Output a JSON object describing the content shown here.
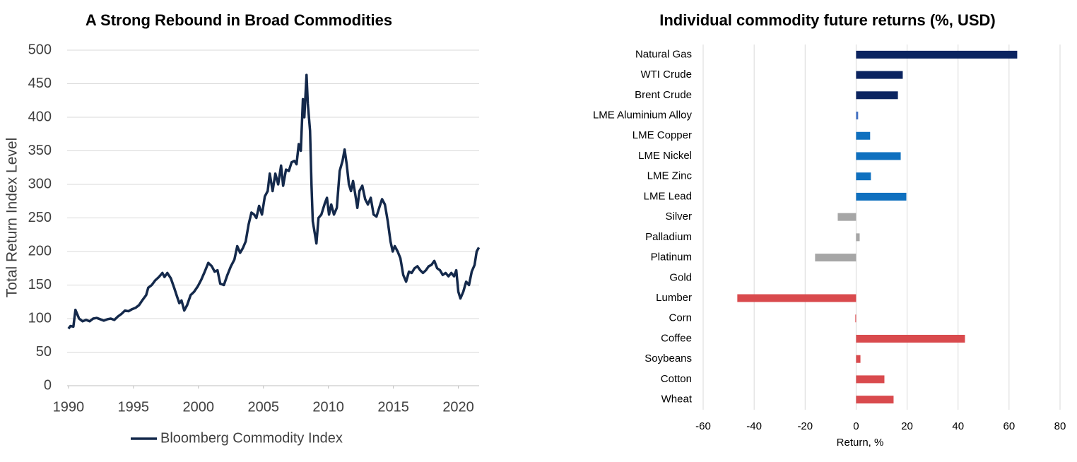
{
  "chart_data": [
    {
      "type": "line",
      "title": "A Strong Rebound in Broad Commodities",
      "ylabel": "Total Return Index Level",
      "x": [
        1990.0,
        1990.16,
        1990.38,
        1990.54,
        1990.82,
        1991.09,
        1991.36,
        1991.63,
        1991.9,
        1992.17,
        1992.45,
        1992.72,
        1992.99,
        1993.26,
        1993.53,
        1993.8,
        1994.08,
        1994.35,
        1994.62,
        1994.89,
        1995.16,
        1995.43,
        1995.71,
        1995.98,
        1996.14,
        1996.41,
        1996.68,
        1996.96,
        1997.23,
        1997.39,
        1997.61,
        1997.88,
        1998.15,
        1998.37,
        1998.53,
        1998.7,
        1998.91,
        1999.13,
        1999.4,
        1999.67,
        1999.95,
        2000.22,
        2000.49,
        2000.76,
        2001.03,
        2001.25,
        2001.47,
        2001.68,
        2001.96,
        2002.23,
        2002.5,
        2002.77,
        2002.99,
        2003.21,
        2003.42,
        2003.64,
        2003.86,
        2004.08,
        2004.29,
        2004.46,
        2004.67,
        2004.89,
        2005.11,
        2005.33,
        2005.49,
        2005.71,
        2005.92,
        2006.14,
        2006.36,
        2006.52,
        2006.74,
        2006.96,
        2007.17,
        2007.39,
        2007.55,
        2007.72,
        2007.88,
        2008.04,
        2008.15,
        2008.32,
        2008.42,
        2008.59,
        2008.7,
        2008.8,
        2008.97,
        2009.08,
        2009.24,
        2009.46,
        2009.73,
        2009.89,
        2010.05,
        2010.22,
        2010.43,
        2010.65,
        2010.87,
        2011.09,
        2011.25,
        2011.41,
        2011.58,
        2011.74,
        2011.9,
        2012.07,
        2012.23,
        2012.39,
        2012.61,
        2012.83,
        2013.04,
        2013.26,
        2013.48,
        2013.7,
        2013.91,
        2014.13,
        2014.35,
        2014.57,
        2014.78,
        2014.95,
        2015.11,
        2015.33,
        2015.54,
        2015.76,
        2015.98,
        2016.2,
        2016.41,
        2016.63,
        2016.85,
        2017.07,
        2017.28,
        2017.5,
        2017.72,
        2017.93,
        2018.15,
        2018.37,
        2018.59,
        2018.8,
        2019.02,
        2019.24,
        2019.46,
        2019.67,
        2019.84,
        2020.0,
        2020.16,
        2020.38,
        2020.6,
        2020.82,
        2021.03,
        2021.25,
        2021.41,
        2021.58
      ],
      "series": [
        {
          "name": "Bloomberg Commodity Index",
          "color": "#14294b",
          "values": [
            85,
            89,
            88,
            113,
            100,
            96,
            98,
            96,
            100,
            101,
            99,
            97,
            99,
            100,
            98,
            103,
            107,
            112,
            111,
            114,
            116,
            120,
            128,
            135,
            146,
            150,
            157,
            162,
            168,
            162,
            168,
            160,
            145,
            132,
            123,
            127,
            112,
            120,
            135,
            140,
            148,
            158,
            170,
            183,
            178,
            170,
            172,
            152,
            150,
            165,
            178,
            188,
            208,
            198,
            205,
            215,
            240,
            258,
            255,
            250,
            268,
            255,
            282,
            290,
            316,
            290,
            316,
            300,
            328,
            298,
            322,
            320,
            333,
            335,
            330,
            360,
            350,
            427,
            400,
            463,
            420,
            380,
            300,
            245,
            225,
            212,
            250,
            255,
            272,
            280,
            255,
            270,
            255,
            265,
            320,
            335,
            352,
            330,
            300,
            290,
            305,
            285,
            265,
            290,
            298,
            278,
            270,
            280,
            255,
            252,
            265,
            278,
            270,
            245,
            215,
            200,
            208,
            200,
            190,
            165,
            155,
            170,
            168,
            175,
            178,
            172,
            168,
            172,
            178,
            180,
            186,
            175,
            172,
            165,
            168,
            163,
            168,
            163,
            172,
            140,
            130,
            140,
            155,
            150,
            170,
            180,
            200,
            206
          ]
        }
      ],
      "xlim": [
        1989.9,
        2021.6
      ],
      "xticks": [
        1990,
        1995,
        2000,
        2005,
        2010,
        2015,
        2020
      ],
      "ylim": [
        0,
        500
      ],
      "yticks": [
        0,
        50,
        100,
        150,
        200,
        250,
        300,
        350,
        400,
        450,
        500
      ],
      "grid": true
    },
    {
      "type": "bar",
      "orientation": "horizontal",
      "title": "Individual commodity future returns (%, USD)",
      "xlabel": "Return, %",
      "categories": [
        "Natural Gas",
        "WTI Crude",
        "Brent Crude",
        "LME Aluminium Alloy",
        "LME Copper",
        "LME Nickel",
        "LME Zinc",
        "LME Lead",
        "Silver",
        "Palladium",
        "Platinum",
        "Gold",
        "Lumber",
        "Corn",
        "Coffee",
        "Soybeans",
        "Cotton",
        "Wheat"
      ],
      "values": [
        63.2,
        18.3,
        16.4,
        0.8,
        5.5,
        17.5,
        5.8,
        19.7,
        -7.2,
        1.4,
        -16.1,
        0,
        -46.6,
        -0.3,
        42.7,
        1.7,
        11.1,
        14.7
      ],
      "colors": [
        "#0b2460",
        "#0b2460",
        "#0b2460",
        "#4472c4",
        "#0f70bf",
        "#0f70bf",
        "#0f70bf",
        "#0f70bf",
        "#a6a6a6",
        "#a6a6a6",
        "#a6a6a6",
        "#a6a6a6",
        "#d94a4d",
        "#d94a4d",
        "#d94a4d",
        "#d94a4d",
        "#d94a4d",
        "#d94a4d"
      ],
      "xlim": [
        -60,
        80
      ],
      "xticks": [
        -60,
        -40,
        -20,
        0,
        20,
        40,
        60,
        80
      ],
      "grid": true
    }
  ]
}
